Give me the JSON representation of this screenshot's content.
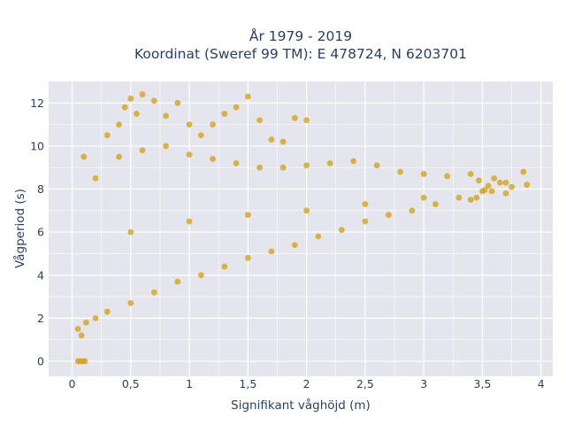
{
  "chart_data": {
    "type": "scatter",
    "title": "År 1979 - 2019",
    "subtitle": "Koordinat (Sweref 99 TM): E 478724, N 6203701",
    "xlabel": "Signifikant våghöjd (m)",
    "ylabel": "Vågperiod (s)",
    "xlim": [
      -0.2,
      4.1
    ],
    "ylim": [
      -0.7,
      13
    ],
    "x_ticks": [
      0,
      0.5,
      1,
      1.5,
      2,
      2.5,
      3,
      3.5,
      4
    ],
    "x_tick_labels": [
      "0",
      "0,5",
      "1",
      "1,5",
      "2",
      "2,5",
      "3",
      "3,5",
      "4"
    ],
    "y_ticks": [
      0,
      2,
      4,
      6,
      8,
      10,
      12
    ],
    "y_tick_labels": [
      "0",
      "2",
      "4",
      "6",
      "8",
      "10",
      "12"
    ],
    "grid": true,
    "legend": "none",
    "marker_color": "#d4a21e",
    "plot_bg": "#e5e5ee",
    "series": [
      {
        "points": [
          [
            0.05,
            0.0
          ],
          [
            0.07,
            0.0
          ],
          [
            0.09,
            0.0
          ],
          [
            0.11,
            0.0
          ],
          [
            0.05,
            1.5
          ],
          [
            0.08,
            1.2
          ],
          [
            0.12,
            1.8
          ],
          [
            0.2,
            2.0
          ],
          [
            0.3,
            2.3
          ],
          [
            0.5,
            2.7
          ],
          [
            0.7,
            3.2
          ],
          [
            0.9,
            3.7
          ],
          [
            1.1,
            4.0
          ],
          [
            1.3,
            4.4
          ],
          [
            1.5,
            4.8
          ],
          [
            1.7,
            5.1
          ],
          [
            1.9,
            5.4
          ],
          [
            2.1,
            5.8
          ],
          [
            2.3,
            6.1
          ],
          [
            2.5,
            6.5
          ],
          [
            2.7,
            6.8
          ],
          [
            2.9,
            7.0
          ],
          [
            3.1,
            7.3
          ],
          [
            3.3,
            7.6
          ],
          [
            3.5,
            7.9
          ],
          [
            3.7,
            8.3
          ],
          [
            0.1,
            9.5
          ],
          [
            0.3,
            10.5
          ],
          [
            0.4,
            11.0
          ],
          [
            0.45,
            11.8
          ],
          [
            0.5,
            12.2
          ],
          [
            0.55,
            11.5
          ],
          [
            0.6,
            12.4
          ],
          [
            0.7,
            12.1
          ],
          [
            0.8,
            11.4
          ],
          [
            0.9,
            12.0
          ],
          [
            1.0,
            11.0
          ],
          [
            1.1,
            10.5
          ],
          [
            1.2,
            11.0
          ],
          [
            1.3,
            11.5
          ],
          [
            1.4,
            11.8
          ],
          [
            1.5,
            12.3
          ],
          [
            1.6,
            11.2
          ],
          [
            1.7,
            10.3
          ],
          [
            1.8,
            10.2
          ],
          [
            1.9,
            11.3
          ],
          [
            2.0,
            11.2
          ],
          [
            0.2,
            8.5
          ],
          [
            0.4,
            9.5
          ],
          [
            0.6,
            9.8
          ],
          [
            0.8,
            10.0
          ],
          [
            1.0,
            9.6
          ],
          [
            1.2,
            9.4
          ],
          [
            1.4,
            9.2
          ],
          [
            1.6,
            9.0
          ],
          [
            1.8,
            9.0
          ],
          [
            2.0,
            9.1
          ],
          [
            2.2,
            9.2
          ],
          [
            2.4,
            9.3
          ],
          [
            2.6,
            9.1
          ],
          [
            2.8,
            8.8
          ],
          [
            3.0,
            8.7
          ],
          [
            3.2,
            8.6
          ],
          [
            3.4,
            8.7
          ],
          [
            3.6,
            8.5
          ],
          [
            3.85,
            8.8
          ],
          [
            3.47,
            8.4
          ],
          [
            3.52,
            7.95
          ],
          [
            3.58,
            7.9
          ],
          [
            3.65,
            8.3
          ],
          [
            3.75,
            8.1
          ],
          [
            3.88,
            8.2
          ],
          [
            3.45,
            7.6
          ],
          [
            3.7,
            7.8
          ],
          [
            3.4,
            7.5
          ],
          [
            3.55,
            8.15
          ],
          [
            0.5,
            6.0
          ],
          [
            1.0,
            6.5
          ],
          [
            1.5,
            6.8
          ],
          [
            2.0,
            7.0
          ],
          [
            2.5,
            7.3
          ],
          [
            3.0,
            7.6
          ]
        ]
      }
    ]
  }
}
